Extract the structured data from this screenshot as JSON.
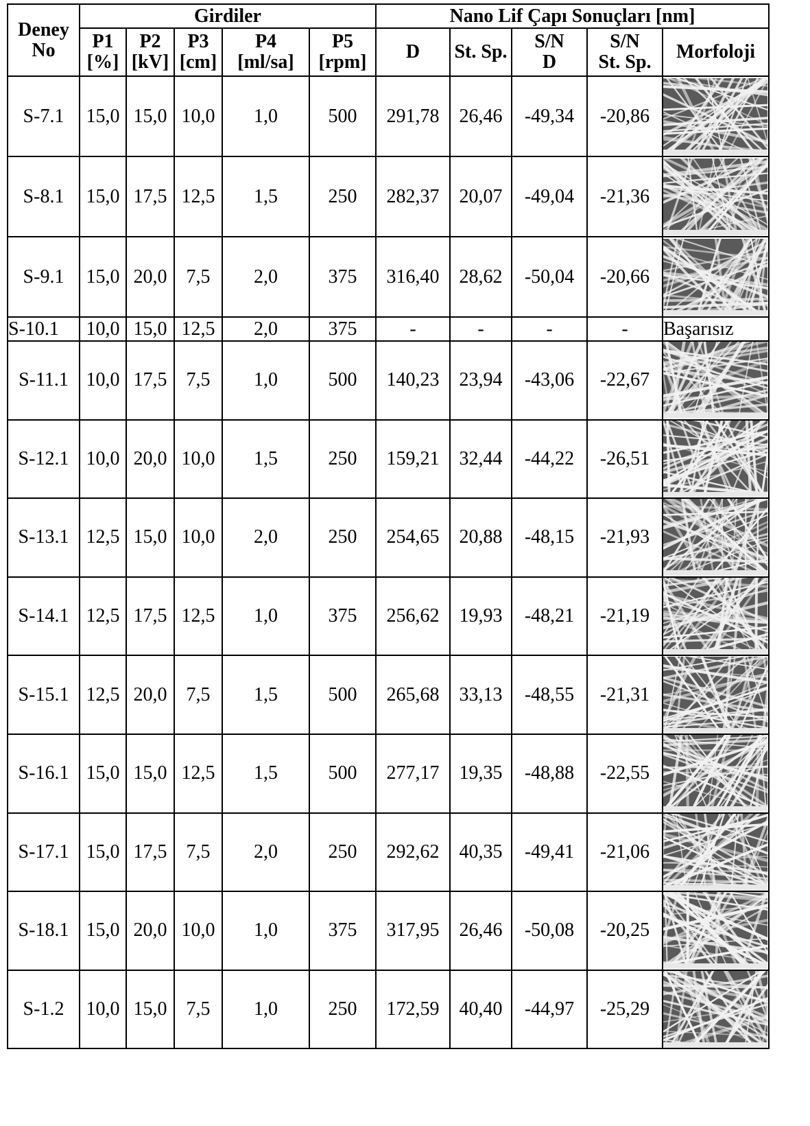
{
  "header": {
    "group_inputs": "Girdiler",
    "group_results": "Nano Lif Çapı Sonuçları [nm]",
    "columns": [
      [
        "Deney",
        "No"
      ],
      [
        "P1",
        "[%]"
      ],
      [
        "P2",
        "[kV]"
      ],
      [
        "P3",
        "[cm]"
      ],
      [
        "P4",
        "[ml/sa]"
      ],
      [
        "P5",
        "[rpm]"
      ],
      [
        "D"
      ],
      [
        "St. Sp."
      ],
      [
        "S/N",
        "D"
      ],
      [
        "S/N",
        "St. Sp."
      ],
      [
        "Morfoloji"
      ]
    ]
  },
  "table": {
    "rows": [
      [
        "S-7.1",
        "15,0",
        "15,0",
        "10,0",
        "1,0",
        "500",
        "291,78",
        "26,46",
        "-49,34",
        "-20,86",
        null
      ],
      [
        "S-8.1",
        "15,0",
        "17,5",
        "12,5",
        "1,5",
        "250",
        "282,37",
        "20,07",
        "-49,04",
        "-21,36",
        null
      ],
      [
        "S-9.1",
        "15,0",
        "20,0",
        "7,5",
        "2,0",
        "375",
        "316,40",
        "28,62",
        "-50,04",
        "-20,66",
        null
      ],
      [
        "S-10.1",
        "10,0",
        "15,0",
        "12,5",
        "2,0",
        "375",
        "-",
        "-",
        "-",
        "-",
        "Başarısız"
      ],
      [
        "S-11.1",
        "10,0",
        "17,5",
        "7,5",
        "1,0",
        "500",
        "140,23",
        "23,94",
        "-43,06",
        "-22,67",
        null
      ],
      [
        "S-12.1",
        "10,0",
        "20,0",
        "10,0",
        "1,5",
        "250",
        "159,21",
        "32,44",
        "-44,22",
        "-26,51",
        null
      ],
      [
        "S-13.1",
        "12,5",
        "15,0",
        "10,0",
        "2,0",
        "250",
        "254,65",
        "20,88",
        "-48,15",
        "-21,93",
        null
      ],
      [
        "S-14.1",
        "12,5",
        "17,5",
        "12,5",
        "1,0",
        "375",
        "256,62",
        "19,93",
        "-48,21",
        "-21,19",
        null
      ],
      [
        "S-15.1",
        "12,5",
        "20,0",
        "7,5",
        "1,5",
        "500",
        "265,68",
        "33,13",
        "-48,55",
        "-21,31",
        null
      ],
      [
        "S-16.1",
        "15,0",
        "15,0",
        "12,5",
        "1,5",
        "500",
        "277,17",
        "19,35",
        "-48,88",
        "-22,55",
        null
      ],
      [
        "S-17.1",
        "15,0",
        "17,5",
        "7,5",
        "2,0",
        "250",
        "292,62",
        "40,35",
        "-49,41",
        "-21,06",
        null
      ],
      [
        "S-18.1",
        "15,0",
        "20,0",
        "10,0",
        "1,0",
        "375",
        "317,95",
        "26,46",
        "-50,08",
        "-20,25",
        null
      ],
      [
        "S-1.2",
        "10,0",
        "15,0",
        "7,5",
        "1,0",
        "250",
        "172,59",
        "40,40",
        "-44,97",
        "-25,29",
        null
      ]
    ]
  }
}
